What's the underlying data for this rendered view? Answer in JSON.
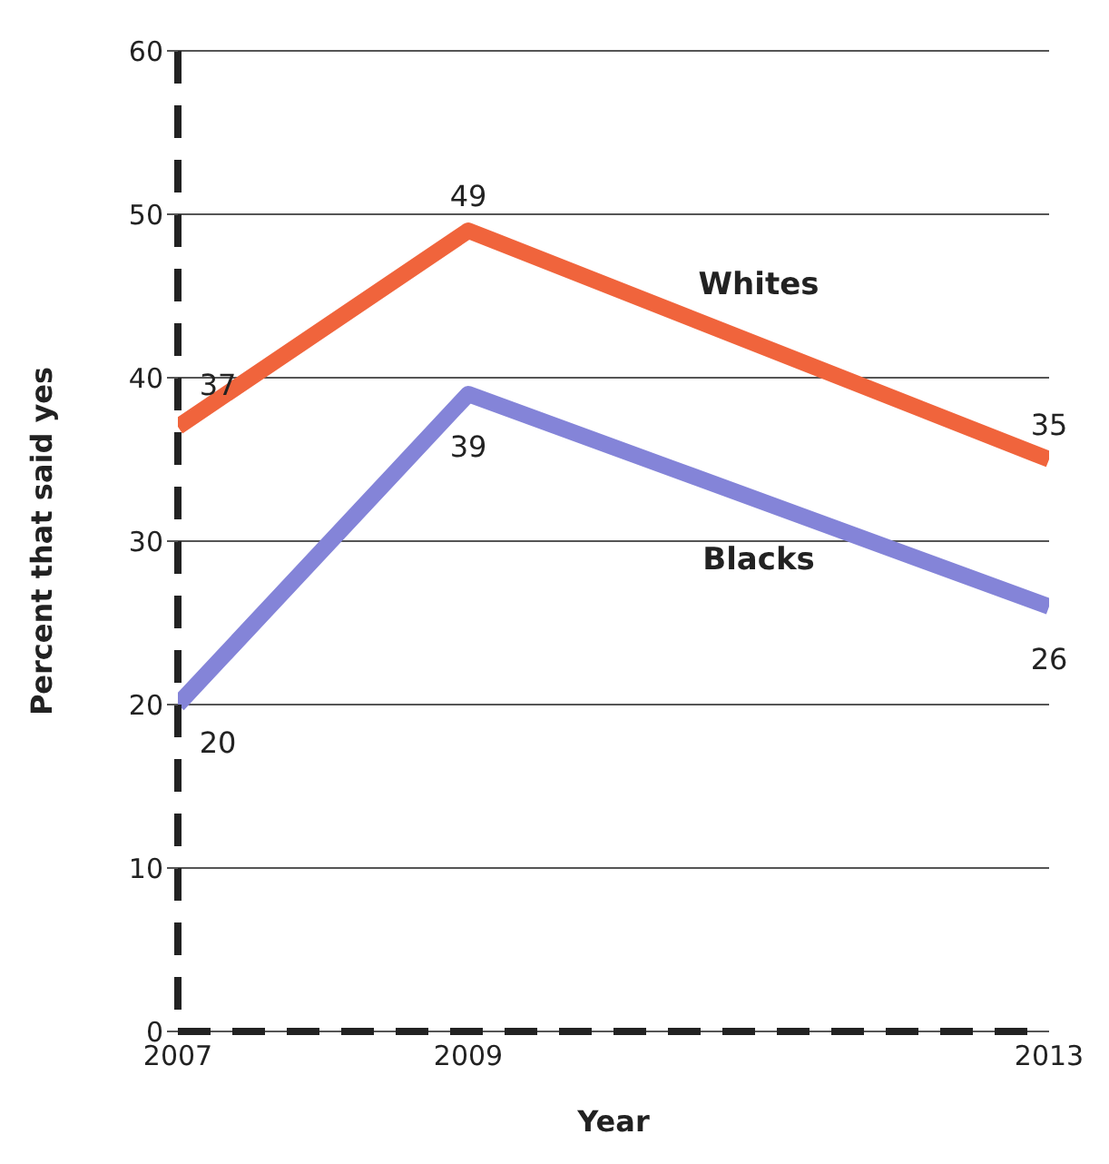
{
  "chart_data": {
    "type": "line",
    "xlabel": "Year",
    "ylabel": "Percent that said yes",
    "x": [
      2007,
      2009,
      2013
    ],
    "xlim": [
      2007,
      2013
    ],
    "xticks": [
      2007,
      2009,
      2013
    ],
    "ylim": [
      0,
      60
    ],
    "yticks": [
      0,
      10,
      20,
      30,
      40,
      50,
      60
    ],
    "series": [
      {
        "name": "Whites",
        "color": "#f0643c",
        "values": [
          37,
          49,
          35
        ]
      },
      {
        "name": "Blacks",
        "color": "#8484d8",
        "values": [
          20,
          39,
          26
        ]
      }
    ],
    "data_labels": true,
    "grid": "y",
    "legend": false,
    "marker": "none",
    "line_style": "solid"
  }
}
